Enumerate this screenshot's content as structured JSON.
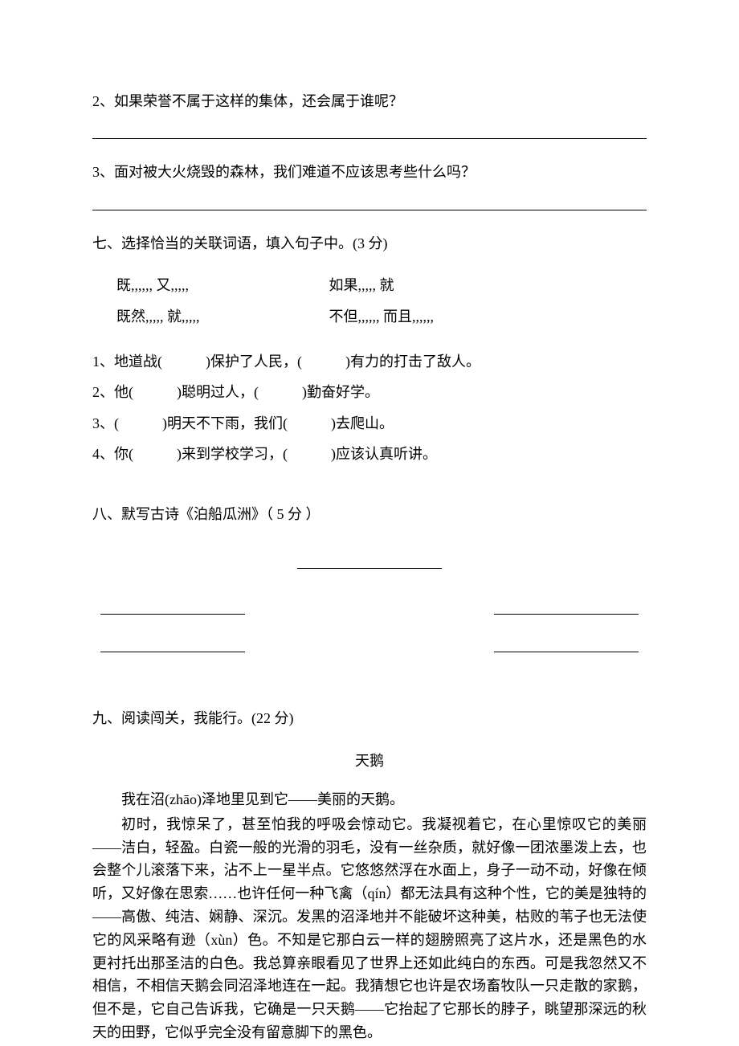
{
  "q2": "2、如果荣誉不属于这样的集体，还会属于谁呢？",
  "q3": "3、面对被大火烧毁的森林，我们难道不应该思考些什么吗？",
  "section7": {
    "heading": "七、选择恰当的关联词语，填入句子中。(3 分)",
    "options": {
      "row1_left": "既,,,,,, 又,,,,,",
      "row1_right": "如果,,,,, 就",
      "row2_left": "既然,,,,, 就,,,,,",
      "row2_right": "不但,,,,,, 而且,,,,,,"
    },
    "items": [
      "1、地道战(　　　)保护了人民，(　　　)有力的打击了敌人。",
      "2、他(　　　)聪明过人，(　　　)勤奋好学。",
      "3、(　　　)明天不下雨，我们(　　　)去爬山。",
      "4、你(　　　)来到学校学习，(　　　)应该认真听讲。"
    ]
  },
  "section8": {
    "heading": "八、默写古诗《泊船瓜洲》（ 5 分 ）"
  },
  "section9": {
    "heading": "九、阅读闯关，我能行。(22 分)",
    "title": "天鹅",
    "para1": "我在沼(zhāo)泽地里见到它——美丽的天鹅。",
    "para2": "初时，我惊呆了，甚至怕我的呼吸会惊动它。我凝视着它，在心里惊叹它的美丽——洁白，轻盈。白瓷一般的光滑的羽毛，没有一丝杂质，就好像一团浓墨泼上去，也会整个儿滚落下来，沾不上一星半点。它悠悠然浮在水面上，身子一动不动，好像在倾听，又好像在思索……也许任何一种飞禽（qín）都无法具有这种个性，它的美是独特的——高傲、纯洁、娴静、深沉。发黑的沼泽地并不能破坏这种美，枯败的苇子也无法使它的风采略有逊（xùn）色。不知是它那白云一样的翅膀照亮了这片水，还是黑色的水更衬托出那圣洁的白色。我总算亲眼看见了世界上还如此纯白的东西。可是我忽然又不相信，不相信天鹅会同沼泽地连在一起。我猜想它也许是农场畜牧队一只走散的家鹅，但不是，它自己告诉我，它确是一只天鹅——它抬起了它那长的脖子，眺望那深远的秋天的田野，它似乎完全没有留意脚下的黑色。"
  },
  "colors": {
    "background": "#ffffff",
    "text": "#000000"
  },
  "typography": {
    "font_family": "SimSun",
    "font_size_pt": 14,
    "line_height": 1.8
  }
}
